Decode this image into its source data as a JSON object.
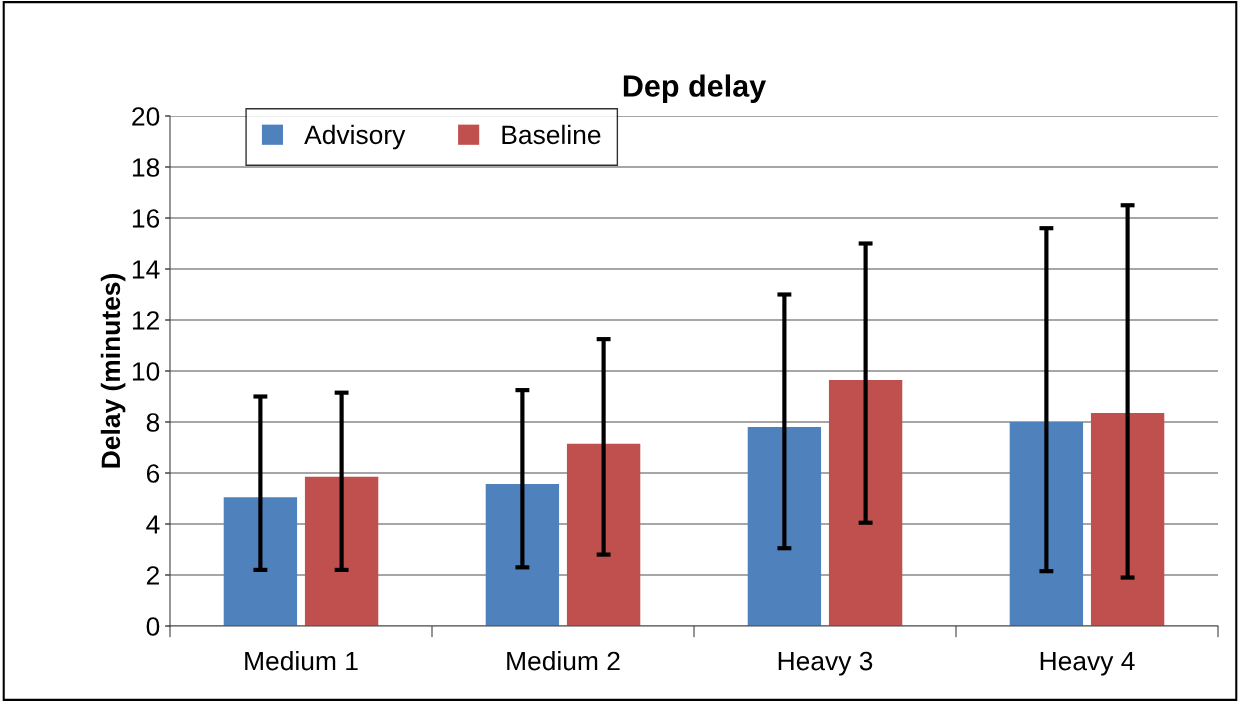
{
  "chart_data": {
    "type": "bar",
    "title": "Dep delay",
    "ylabel": "Delay (minutes)",
    "categories": [
      "Medium 1",
      "Medium 2",
      "Heavy 3",
      "Heavy 4"
    ],
    "series": [
      {
        "name": "Advisory",
        "color": "#4f81bd",
        "values": [
          5.05,
          5.57,
          7.8,
          8.0
        ],
        "errors": [
          [
            2.2,
            9.0
          ],
          [
            2.3,
            9.25
          ],
          [
            3.05,
            13.0
          ],
          [
            2.15,
            15.6
          ]
        ]
      },
      {
        "name": "Baseline",
        "color": "#c0504d",
        "values": [
          5.85,
          7.15,
          9.65,
          8.35
        ],
        "errors": [
          [
            2.2,
            9.15
          ],
          [
            2.8,
            11.25
          ],
          [
            4.05,
            15.0
          ],
          [
            1.9,
            16.5
          ]
        ]
      }
    ],
    "ylim": [
      0,
      20
    ],
    "yticks": [
      0,
      2,
      4,
      6,
      8,
      10,
      12,
      14,
      16,
      18,
      20
    ],
    "grid": "y",
    "legend": "top left"
  }
}
